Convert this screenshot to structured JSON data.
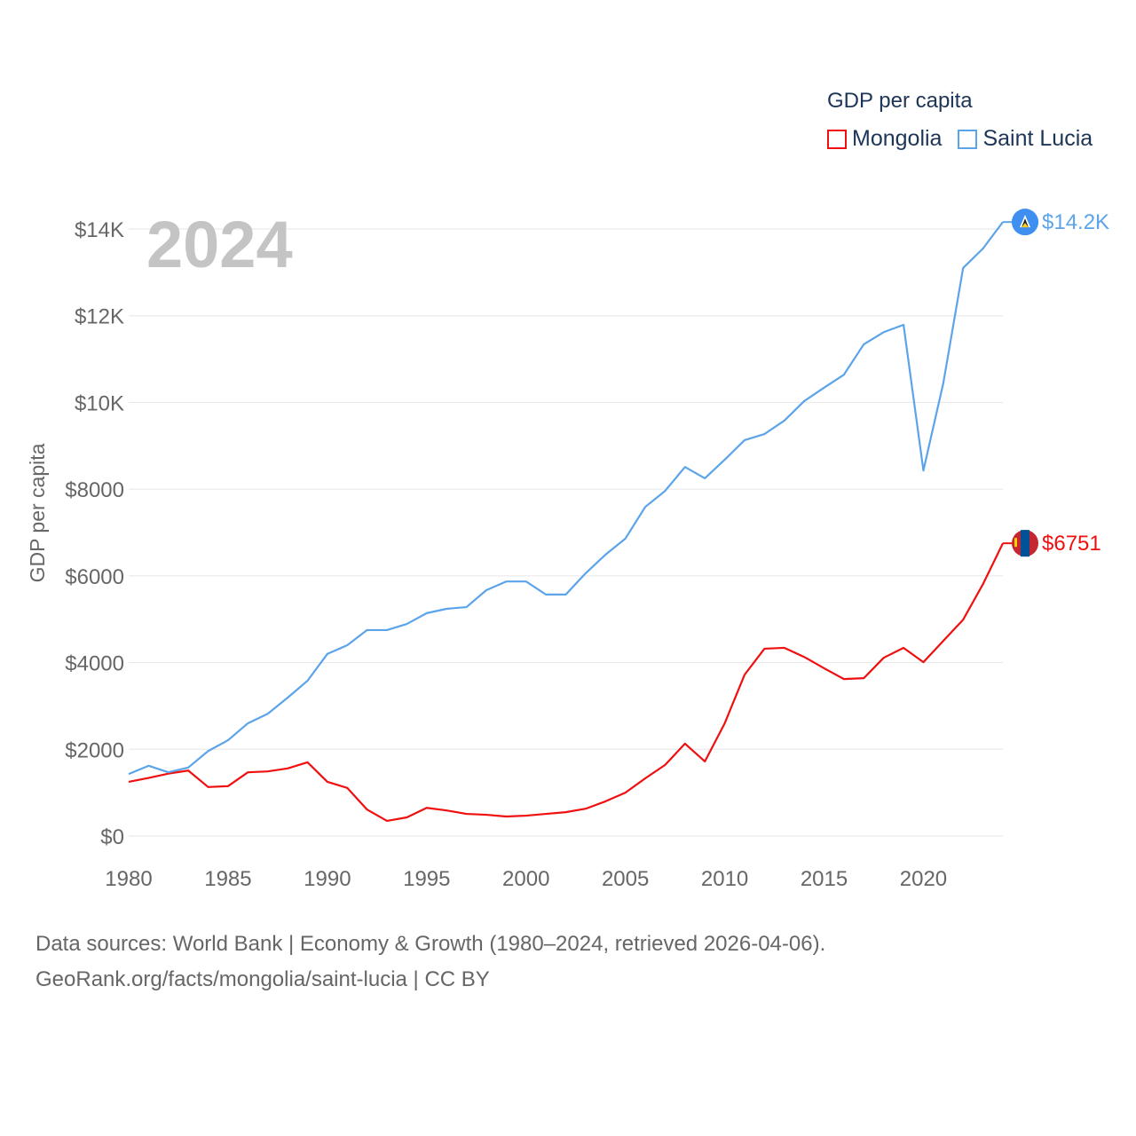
{
  "chart_data": {
    "type": "line",
    "title": "GDP per capita",
    "year_label": "2024",
    "xlabel": "",
    "ylabel": "GDP per capita",
    "xlim": [
      1980,
      2024
    ],
    "ylim": [
      0,
      14000
    ],
    "x_ticks": [
      "1980",
      "1985",
      "1990",
      "1995",
      "2000",
      "2005",
      "2010",
      "2015",
      "2020"
    ],
    "y_ticks": [
      {
        "value": 0,
        "label": "$0"
      },
      {
        "value": 2000,
        "label": "$2000"
      },
      {
        "value": 4000,
        "label": "$4000"
      },
      {
        "value": 6000,
        "label": "$6000"
      },
      {
        "value": 8000,
        "label": "$8000"
      },
      {
        "value": 10000,
        "label": "$10K"
      },
      {
        "value": 12000,
        "label": "$12K"
      },
      {
        "value": 14000,
        "label": "$14K"
      }
    ],
    "grid": true,
    "legend_placement": "top-right",
    "x": [
      1980,
      1981,
      1982,
      1983,
      1984,
      1985,
      1986,
      1987,
      1988,
      1989,
      1990,
      1991,
      1992,
      1993,
      1994,
      1995,
      1996,
      1997,
      1998,
      1999,
      2000,
      2001,
      2002,
      2003,
      2004,
      2005,
      2006,
      2007,
      2008,
      2009,
      2010,
      2011,
      2012,
      2013,
      2014,
      2015,
      2016,
      2017,
      2018,
      2019,
      2020,
      2021,
      2022,
      2023,
      2024
    ],
    "series": [
      {
        "name": "Mongolia",
        "color": "#f00f0f",
        "end_label": "$6751",
        "flag": "mongolia-flag",
        "values": [
          1250,
          1340,
          1440,
          1510,
          1130,
          1150,
          1470,
          1490,
          1560,
          1700,
          1250,
          1110,
          610,
          350,
          430,
          650,
          590,
          510,
          490,
          450,
          470,
          510,
          550,
          630,
          800,
          1000,
          1330,
          1640,
          2130,
          1720,
          2600,
          3720,
          4320,
          4340,
          4130,
          3870,
          3620,
          3640,
          4110,
          4340,
          4010,
          4500,
          4990,
          5810,
          6751
        ]
      },
      {
        "name": "Saint Lucia",
        "color": "#5ba4ea",
        "end_label": "$14.2K",
        "flag": "saint-lucia-flag",
        "values": [
          1430,
          1620,
          1470,
          1580,
          1960,
          2210,
          2600,
          2820,
          3190,
          3580,
          4200,
          4400,
          4750,
          4750,
          4890,
          5140,
          5240,
          5280,
          5670,
          5870,
          5870,
          5570,
          5570,
          6060,
          6490,
          6860,
          7590,
          7960,
          8510,
          8250,
          8680,
          9130,
          9270,
          9580,
          10030,
          10340,
          10640,
          11340,
          11620,
          11790,
          8430,
          10440,
          13100,
          13550,
          14160
        ]
      }
    ]
  },
  "legend": {
    "title": "GDP per capita",
    "items": [
      "Mongolia",
      "Saint Lucia"
    ]
  },
  "source": {
    "line1": "Data sources: World Bank | Economy & Growth (1980–2024, retrieved 2026-04-06).",
    "line2": "GeoRank.org/facts/mongolia/saint-lucia | CC BY"
  }
}
